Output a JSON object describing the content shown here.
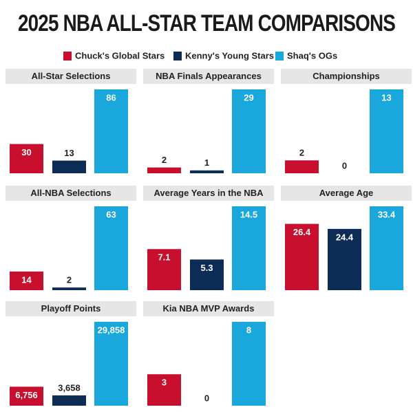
{
  "chart_data": {
    "type": "bar",
    "title": "2025 NBA ALL-STAR TEAM COMPARISONS",
    "categories": [
      "All-Star Selections",
      "NBA Finals Appearances",
      "Championships",
      "All-NBA Selections",
      "Average Years in the NBA",
      "Average Age",
      "Playoff Points",
      "Kia NBA MVP Awards"
    ],
    "series": [
      {
        "name": "Chuck's Global Stars",
        "color": "#c8102e",
        "values": [
          30,
          2,
          2,
          14,
          7.1,
          26.4,
          6756,
          3
        ],
        "value_labels": [
          "30",
          "2",
          "2",
          "14",
          "7.1",
          "26.4",
          "6,756",
          "3"
        ]
      },
      {
        "name": "Kenny's Young Stars",
        "color": "#0c2c56",
        "values": [
          13,
          1,
          0,
          2,
          5.3,
          24.4,
          3658,
          0
        ],
        "value_labels": [
          "13",
          "1",
          "0",
          "2",
          "5.3",
          "24.4",
          "3,658",
          "0"
        ]
      },
      {
        "name": "Shaq's OGs",
        "color": "#1aa7dc",
        "values": [
          86,
          29,
          13,
          63,
          14.5,
          33.4,
          29858,
          8
        ],
        "value_labels": [
          "86",
          "29",
          "13",
          "63",
          "14.5",
          "33.4",
          "29,858",
          "8"
        ]
      }
    ]
  }
}
